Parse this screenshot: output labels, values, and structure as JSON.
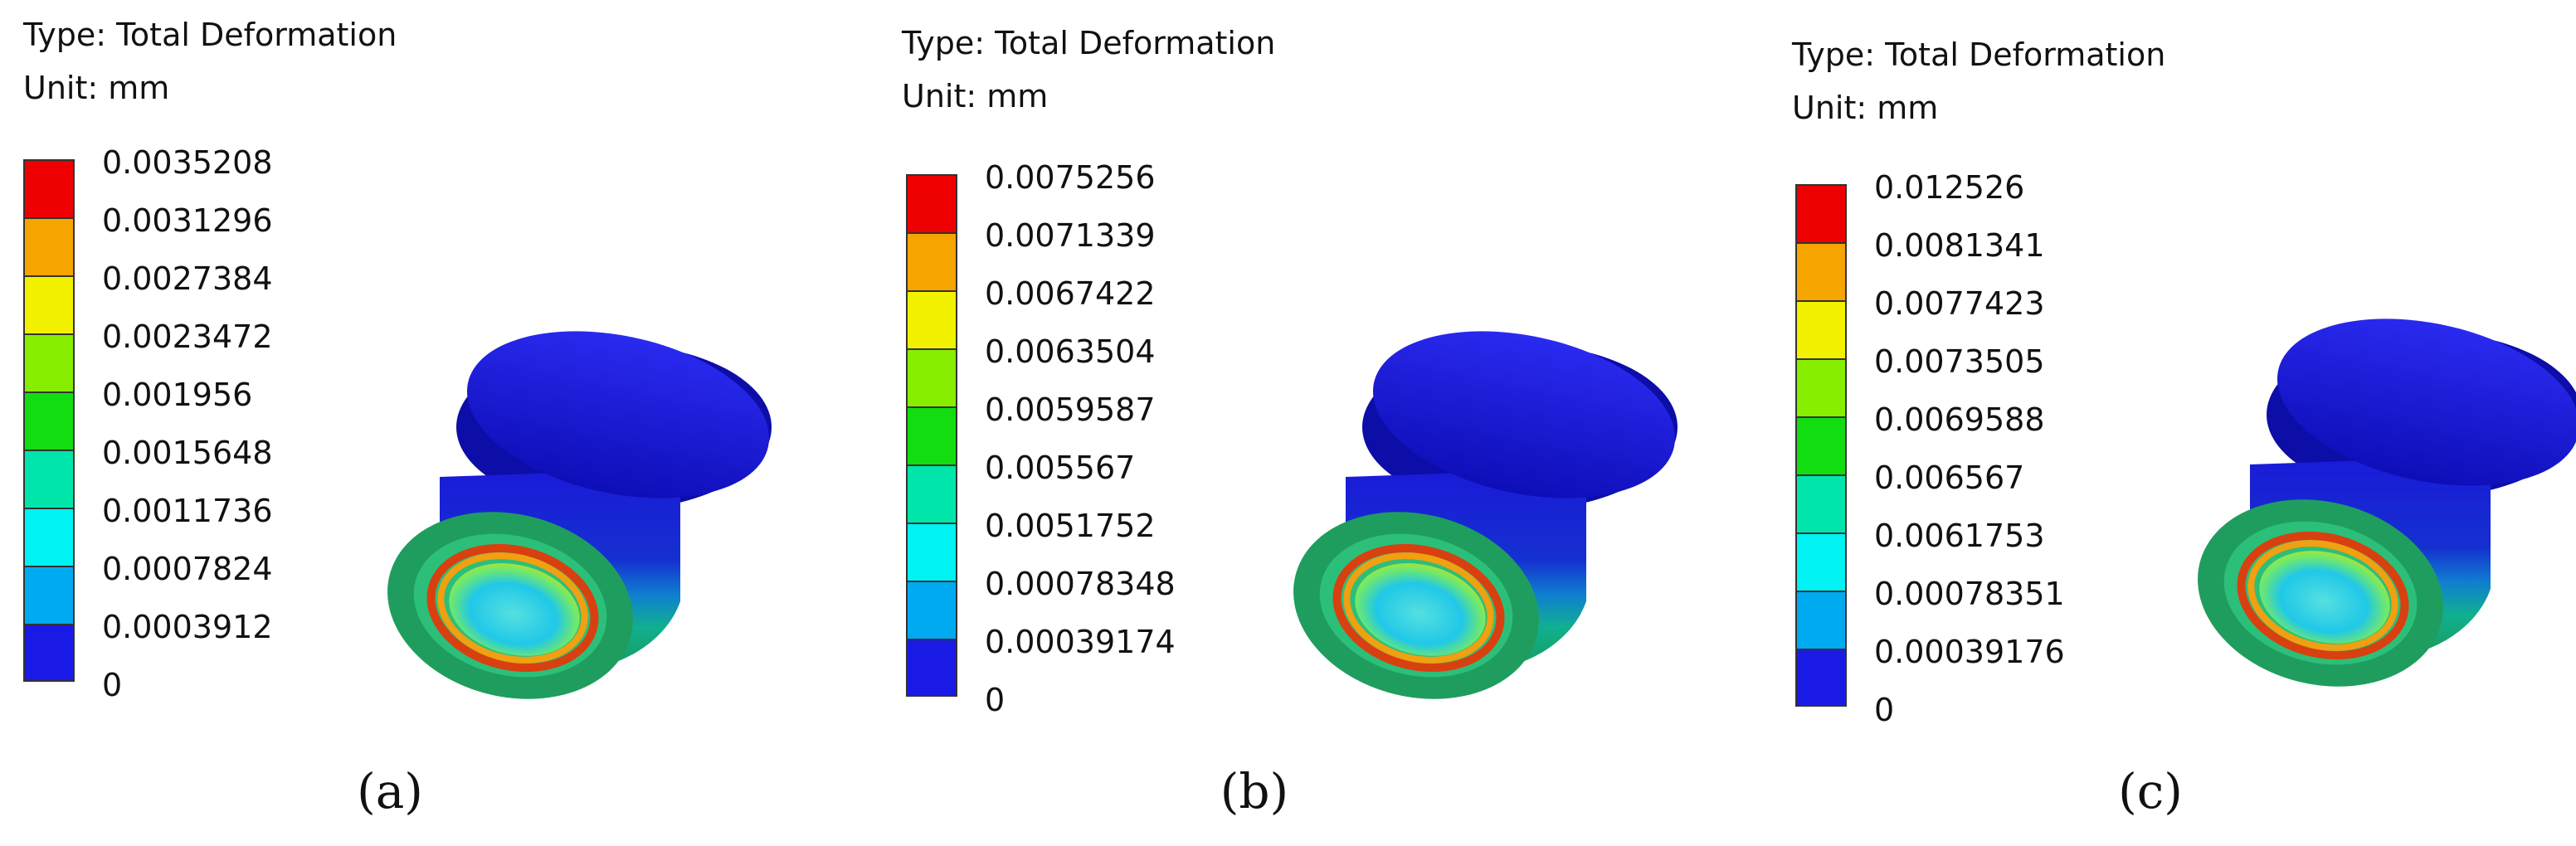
{
  "panels": [
    {
      "type_label": "Type: Total Deformation",
      "unit_label": "Unit: mm",
      "legend_labels": [
        "0.0035208",
        "0.0031296",
        "0.0027384",
        "0.0023472",
        "0.001956",
        "0.0015648",
        "0.0011736",
        "0.0007824",
        "0.0003912",
        "0"
      ],
      "caption": "(a)"
    },
    {
      "type_label": "Type: Total Deformation",
      "unit_label": "Unit: mm",
      "legend_labels": [
        "0.0075256",
        "0.0071339",
        "0.0067422",
        "0.0063504",
        "0.0059587",
        "0.005567",
        "0.0051752",
        "0.00078348",
        "0.00039174",
        "0"
      ],
      "caption": "(b)"
    },
    {
      "type_label": "Type: Total Deformation",
      "unit_label": "Unit: mm",
      "legend_labels": [
        "0.012526",
        "0.0081341",
        "0.0077423",
        "0.0073505",
        "0.0069588",
        "0.006567",
        "0.0061753",
        "0.00078351",
        "0.00039176",
        "0"
      ],
      "caption": "(c)"
    }
  ],
  "legend_colors": [
    "#ee0000",
    "#f5a400",
    "#f2f200",
    "#88ee00",
    "#11dd11",
    "#00e6aa",
    "#00f2f2",
    "#00aaf0",
    "#1a1ae6"
  ]
}
